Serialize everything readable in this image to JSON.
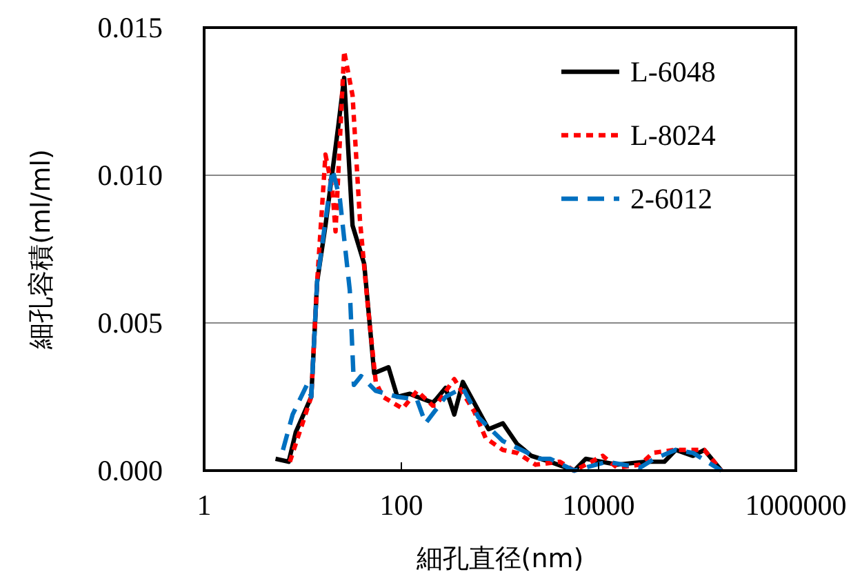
{
  "chart_data": {
    "type": "line",
    "xlabel": "細孔直径(nm)",
    "ylabel": "細孔容積(ml/ml)",
    "log": "x",
    "xlim": [
      1,
      1000000
    ],
    "xticks": [
      1,
      100,
      10000,
      1000000
    ],
    "ylim": [
      0,
      0.015
    ],
    "yticks": [
      {
        "value": 0,
        "label": "0.000"
      },
      {
        "value": 0.005,
        "label": "0.005"
      },
      {
        "value": 0.01,
        "label": "0.010"
      },
      {
        "value": 0.015,
        "label": "0.015"
      }
    ],
    "grid": "y",
    "legend": "top right",
    "series": [
      {
        "name": "L-6048",
        "color": "#000000",
        "line_style": "solid",
        "x": [
          5.3,
          7.2,
          8.5,
          12.2,
          14,
          17,
          23,
          26.3,
          32,
          42,
          53,
          74,
          91,
          122,
          144,
          208,
          223,
          281,
          344,
          420,
          766,
          1070,
          1490,
          2080,
          3220,
          5670,
          7410,
          15400,
          30000,
          46400,
          60600,
          90500,
          118000,
          176000
        ],
        "values": [
          0.0004,
          0.0003,
          0.0013,
          0.0025,
          0.0064,
          0.0083,
          0.0117,
          0.0133,
          0.0083,
          0.007,
          0.0033,
          0.0035,
          0.0025,
          0.0026,
          0.0025,
          0.0023,
          0.0024,
          0.0028,
          0.0019,
          0.003,
          0.0014,
          0.0016,
          0.0009,
          0.0005,
          0.0003,
          0,
          0.0004,
          0.0002,
          0.0003,
          0.0003,
          0.0007,
          0.0005,
          0.0007,
          0
        ]
      },
      {
        "name": "L-8024",
        "color": "#ff0000",
        "line_style": "dotted",
        "x": [
          7.4,
          12.2,
          14,
          17,
          20,
          21.5,
          26.3,
          32,
          38,
          45,
          55,
          65,
          103,
          144,
          208,
          223,
          344,
          548,
          716,
          1070,
          1490,
          2300,
          4060,
          5670,
          11000,
          15400,
          26300,
          35500,
          58600,
          118000,
          176000
        ],
        "values": [
          0.0003,
          0.0025,
          0.0064,
          0.0107,
          0.0095,
          0.0081,
          0.0142,
          0.0127,
          0.0085,
          0.0058,
          0.003,
          0.0025,
          0.0021,
          0.0027,
          0.0022,
          0.0022,
          0.0031,
          0.002,
          0.0011,
          0.0007,
          0.0006,
          0.0002,
          0.0003,
          0,
          0.0005,
          0.0001,
          0.0002,
          0.0006,
          0.0007,
          0.0007,
          0
        ]
      },
      {
        "name": "2-6012",
        "color": "#0070c0",
        "line_style": "dashed",
        "x": [
          6.3,
          7.9,
          11,
          12.2,
          14,
          20,
          23.8,
          30,
          33,
          39,
          55,
          91,
          144,
          176,
          281,
          420,
          606,
          1070,
          2550,
          3220,
          5670,
          12200,
          26300,
          36700,
          60600,
          90500,
          176000
        ],
        "values": [
          0.0007,
          0.0019,
          0.0029,
          0.0025,
          0.0064,
          0.0102,
          0.0092,
          0.0061,
          0.0029,
          0.0032,
          0.0027,
          0.0025,
          0.0024,
          0.0016,
          0.0025,
          0.0028,
          0.0018,
          0.001,
          0.0004,
          0.0004,
          0,
          0.0003,
          0.0001,
          0.0004,
          0.0007,
          0.0006,
          0
        ]
      }
    ]
  }
}
